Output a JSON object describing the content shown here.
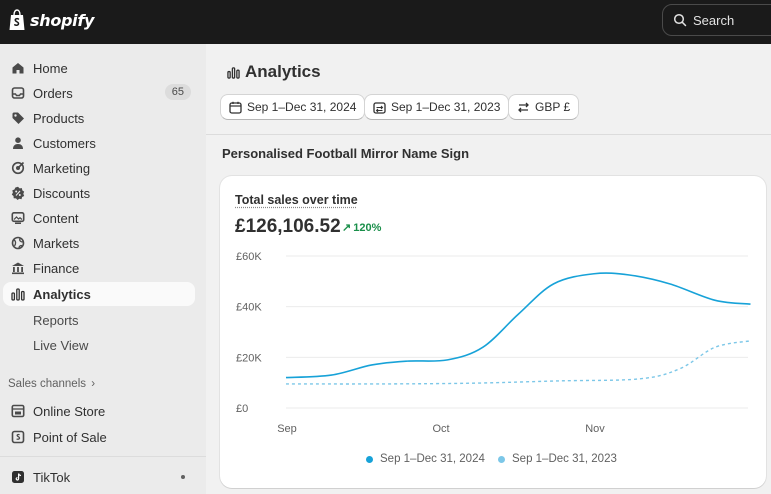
{
  "brand": {
    "name": "shopify"
  },
  "search": {
    "label": "Search"
  },
  "sidebar": {
    "items": [
      {
        "label": "Home",
        "icon": "home-icon"
      },
      {
        "label": "Orders",
        "icon": "inbox-icon",
        "badge": "65"
      },
      {
        "label": "Products",
        "icon": "tag-icon"
      },
      {
        "label": "Customers",
        "icon": "person-icon"
      },
      {
        "label": "Marketing",
        "icon": "target-icon"
      },
      {
        "label": "Discounts",
        "icon": "discount-icon"
      },
      {
        "label": "Content",
        "icon": "image-icon"
      },
      {
        "label": "Markets",
        "icon": "globe-icon"
      },
      {
        "label": "Finance",
        "icon": "bank-icon"
      },
      {
        "label": "Analytics",
        "icon": "bar-chart-icon",
        "active": true
      }
    ],
    "sub_items": [
      "Reports",
      "Live View"
    ],
    "sales_channels_label": "Sales channels",
    "channels": [
      {
        "label": "Online Store",
        "icon": "store-icon"
      },
      {
        "label": "Point of Sale",
        "icon": "pos-icon"
      }
    ],
    "apps": [
      {
        "label": "TikTok",
        "icon": "tiktok-icon"
      }
    ]
  },
  "page": {
    "title": "Analytics",
    "filters": {
      "date_range": "Sep 1–Dec 31, 2024",
      "compare_range": "Sep 1–Dec 31, 2023",
      "currency": "GBP £"
    },
    "product_title": "Personalised Football Mirror Name Sign"
  },
  "card": {
    "title": "Total sales over time",
    "value": "£126,106.52",
    "delta": "120%"
  },
  "colors": {
    "current_series": "#17a2d8",
    "previous_series": "#7cc7e8",
    "delta_positive": "#1a8f4a"
  },
  "chart_data": {
    "type": "line",
    "y_ticks": [
      "£60K",
      "£40K",
      "£20K",
      "£0"
    ],
    "x_ticks": [
      "Sep",
      "Oct",
      "Nov"
    ],
    "ylim": [
      0,
      60000
    ],
    "grid": true,
    "legend_position": "bottom",
    "series": [
      {
        "name": "Sep 1–Dec 31, 2024",
        "style": "solid",
        "points": [
          {
            "x": "2024-09-01",
            "y": 12000
          },
          {
            "x": "2024-09-10",
            "y": 13000
          },
          {
            "x": "2024-09-18",
            "y": 17000
          },
          {
            "x": "2024-09-25",
            "y": 18500
          },
          {
            "x": "2024-10-03",
            "y": 19000
          },
          {
            "x": "2024-10-10",
            "y": 24000
          },
          {
            "x": "2024-10-17",
            "y": 37000
          },
          {
            "x": "2024-10-24",
            "y": 49000
          },
          {
            "x": "2024-11-01",
            "y": 53000
          },
          {
            "x": "2024-11-08",
            "y": 52500
          },
          {
            "x": "2024-11-16",
            "y": 49000
          },
          {
            "x": "2024-11-25",
            "y": 42500
          },
          {
            "x": "2024-12-02",
            "y": 41000
          }
        ]
      },
      {
        "name": "Sep 1–Dec 31, 2023",
        "style": "dashed",
        "points": [
          {
            "x": "2023-09-01",
            "y": 9500
          },
          {
            "x": "2023-09-20",
            "y": 9500
          },
          {
            "x": "2023-10-08",
            "y": 9800
          },
          {
            "x": "2023-10-25",
            "y": 10700
          },
          {
            "x": "2023-11-10",
            "y": 11500
          },
          {
            "x": "2023-11-18",
            "y": 15500
          },
          {
            "x": "2023-11-25",
            "y": 24000
          },
          {
            "x": "2023-12-02",
            "y": 26500
          }
        ]
      }
    ]
  }
}
